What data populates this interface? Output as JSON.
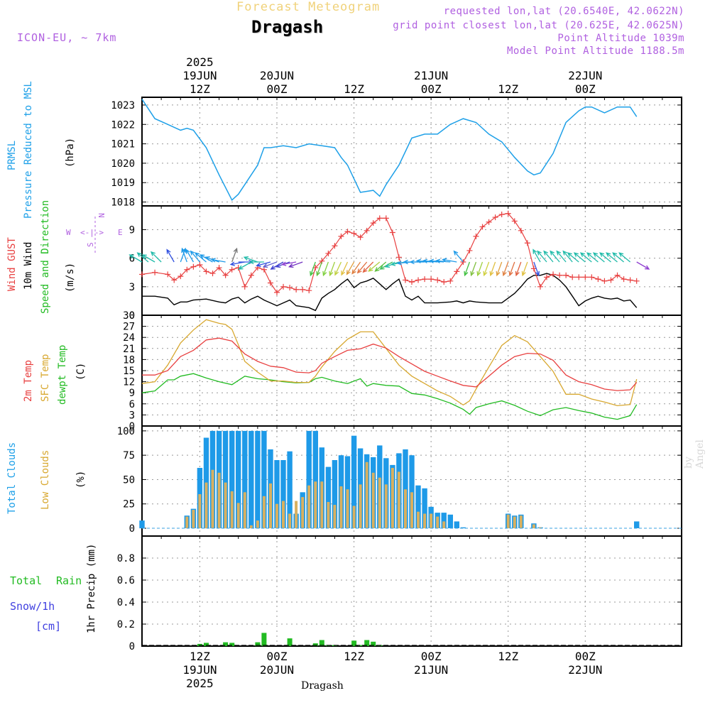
{
  "header": {
    "title": "Forecast Meteogram",
    "station": "Dragash",
    "model": "ICON-EU, ~ 7km",
    "requested": "requested lon,lat (20.6540E, 42.0622N)",
    "grid_point": "grid point closest lon,lat (20.625E, 42.0625N)",
    "point_altitude": "Point Altitude 1039m",
    "model_altitude": "Model Point Altitude 1188.5m"
  },
  "footer": {
    "station": "Dragash",
    "watermark": "by Angel"
  },
  "colors": {
    "pressure": "#1ea0e8",
    "gust": "#e84040",
    "wind": "#000000",
    "wind_dir": "#22bb22",
    "temp2m": "#e84040",
    "sfc_temp": "#d8a830",
    "dewpt": "#22bb22",
    "total_clouds": "#1e9ae8",
    "low_clouds": "#d8b060",
    "rain": "#22bb22",
    "snow": "#4040e0",
    "compass": "#b060e0"
  },
  "panel_labels": {
    "pressure": [
      "PRMSL",
      "Pressure Reduced to MSL",
      "(hPa)"
    ],
    "wind": [
      "Wind GUST",
      "10m Wind",
      "Speed and Direction",
      "(m/s)"
    ],
    "temp": [
      "2m Temp",
      "SFC Temp",
      "dewpt Temp",
      "(C)"
    ],
    "clouds": [
      "Total Clouds",
      "Low Clouds",
      "(%)"
    ],
    "precip": [
      "Total",
      "Rain",
      "Snow/1h",
      "[cm]",
      "1hr Precip (mm)"
    ]
  },
  "compass": {
    "w": "W",
    "e": "E",
    "n": "N",
    "s": "S",
    "arrows": "<-|->"
  },
  "chart_data": {
    "type": "line",
    "x_units": "hours since 2025-06-19 00Z (1-hourly)",
    "x_range": [
      3,
      87
    ],
    "top_ticks": [
      {
        "h": 12,
        "lines": [
          "2025",
          "19JUN",
          "12Z"
        ]
      },
      {
        "h": 24,
        "lines": [
          "20JUN",
          "00Z"
        ]
      },
      {
        "h": 36,
        "lines": [
          "12Z"
        ]
      },
      {
        "h": 48,
        "lines": [
          "21JUN",
          "00Z"
        ]
      },
      {
        "h": 60,
        "lines": [
          "12Z"
        ]
      },
      {
        "h": 72,
        "lines": [
          "22JUN",
          "00Z"
        ]
      }
    ],
    "bottom_ticks": [
      {
        "h": 12,
        "lines": [
          "12Z",
          "19JUN",
          "2025"
        ]
      },
      {
        "h": 24,
        "lines": [
          "00Z",
          "20JUN"
        ]
      },
      {
        "h": 36,
        "lines": [
          "12Z"
        ]
      },
      {
        "h": 48,
        "lines": [
          "00Z",
          "21JUN"
        ]
      },
      {
        "h": 60,
        "lines": [
          "12Z"
        ]
      },
      {
        "h": 72,
        "lines": [
          "00Z",
          "22JUN"
        ]
      }
    ],
    "pressure": {
      "ylim": [
        1017.8,
        1023.4
      ],
      "yticks": [
        1018,
        1019,
        1020,
        1021,
        1022,
        1023
      ],
      "x": [
        3,
        5,
        7,
        9,
        10,
        11,
        13,
        15,
        17,
        18,
        19,
        21,
        22,
        23,
        25,
        27,
        29,
        31,
        33,
        34,
        35,
        37,
        39,
        40,
        41,
        43,
        45,
        47,
        49,
        51,
        53,
        55,
        57,
        59,
        61,
        63,
        64,
        65,
        67,
        69,
        71,
        72,
        73,
        75,
        77,
        79,
        80
      ],
      "values": [
        1023.3,
        1022.3,
        1022.0,
        1021.7,
        1021.8,
        1021.7,
        1020.8,
        1019.4,
        1018.1,
        1018.4,
        1018.9,
        1019.9,
        1020.8,
        1020.8,
        1020.9,
        1020.8,
        1021.0,
        1020.9,
        1020.8,
        1020.3,
        1019.9,
        1018.5,
        1018.6,
        1018.3,
        1018.9,
        1019.9,
        1021.3,
        1021.5,
        1021.5,
        1022.0,
        1022.3,
        1022.1,
        1021.5,
        1021.1,
        1020.3,
        1019.6,
        1019.4,
        1019.5,
        1020.5,
        1022.1,
        1022.7,
        1022.9,
        1022.9,
        1022.6,
        1022.9,
        1022.9,
        1022.4
      ]
    },
    "wind": {
      "ylim": [
        0,
        11.5
      ],
      "yticks": [
        0,
        3,
        6,
        9
      ],
      "gust_x": [
        3,
        5,
        7,
        8,
        9,
        10,
        11,
        12,
        13,
        14,
        15,
        16,
        17,
        18,
        19,
        20,
        21,
        22,
        23,
        24,
        25,
        26,
        27,
        28,
        29,
        30,
        31,
        32,
        33,
        34,
        35,
        36,
        37,
        38,
        39,
        40,
        41,
        42,
        43,
        44,
        45,
        46,
        47,
        48,
        49,
        50,
        51,
        52,
        53,
        54,
        55,
        56,
        57,
        58,
        59,
        60,
        61,
        62,
        63,
        64,
        65,
        66,
        67,
        68,
        69,
        70,
        71,
        72,
        73,
        74,
        75,
        76,
        77,
        78,
        79,
        80
      ],
      "gust": [
        4.3,
        4.5,
        4.3,
        3.7,
        4.1,
        4.8,
        5.1,
        5.3,
        4.6,
        4.4,
        5.0,
        4.2,
        4.8,
        5.0,
        3.0,
        4.2,
        5.0,
        4.8,
        3.4,
        2.4,
        3.0,
        2.9,
        2.7,
        2.7,
        2.6,
        5.0,
        5.7,
        6.5,
        7.3,
        8.3,
        8.8,
        8.6,
        8.2,
        8.9,
        9.7,
        10.2,
        10.2,
        8.7,
        6.1,
        3.7,
        3.5,
        3.7,
        3.8,
        3.8,
        3.7,
        3.5,
        3.6,
        4.6,
        5.6,
        6.8,
        8.3,
        9.3,
        9.8,
        10.3,
        10.6,
        10.7,
        9.9,
        8.9,
        7.6,
        4.9,
        3.0,
        4.0,
        4.3,
        4.2,
        4.2,
        4.0,
        4.0,
        4.0,
        4.0,
        3.8,
        3.6,
        3.7,
        4.2,
        3.8,
        3.7,
        3.6
      ],
      "speed_x": [
        3,
        5,
        7,
        8,
        9,
        10,
        11,
        13,
        15,
        16,
        17,
        18,
        19,
        20,
        21,
        22,
        23,
        24,
        25,
        26,
        27,
        28,
        29,
        30,
        31,
        32,
        33,
        34,
        35,
        36,
        37,
        38,
        39,
        40,
        41,
        42,
        43,
        44,
        45,
        46,
        47,
        49,
        51,
        52,
        53,
        54,
        55,
        57,
        59,
        61,
        62,
        63,
        64,
        65,
        66,
        67,
        68,
        69,
        70,
        71,
        72,
        73,
        74,
        75,
        76,
        77,
        78,
        79,
        80
      ],
      "speed": [
        2.0,
        2.0,
        1.8,
        1.1,
        1.4,
        1.4,
        1.6,
        1.7,
        1.4,
        1.3,
        1.7,
        1.9,
        1.3,
        1.7,
        2.0,
        1.6,
        1.3,
        1.0,
        1.3,
        1.6,
        1.0,
        0.9,
        0.8,
        0.5,
        1.8,
        2.3,
        2.7,
        3.3,
        3.8,
        2.9,
        3.4,
        3.6,
        3.9,
        3.3,
        2.7,
        3.3,
        3.8,
        2.0,
        1.6,
        2.0,
        1.3,
        1.3,
        1.4,
        1.5,
        1.3,
        1.5,
        1.4,
        1.3,
        1.3,
        2.3,
        3.0,
        3.8,
        4.2,
        4.2,
        4.4,
        4.2,
        3.7,
        3.0,
        2.0,
        1.0,
        1.5,
        1.8,
        2.0,
        1.8,
        1.7,
        1.8,
        1.5,
        1.6,
        0.8
      ],
      "vectors_x": [
        3,
        4,
        5,
        6,
        8,
        9,
        10,
        11,
        12,
        13,
        14,
        15,
        16,
        17,
        18,
        19,
        20,
        21,
        22,
        23,
        24,
        25,
        26,
        27,
        28,
        30,
        31,
        32,
        33,
        34,
        35,
        36,
        37,
        38,
        39,
        40,
        41,
        42,
        43,
        44,
        45,
        46,
        47,
        48,
        49,
        50,
        51,
        52,
        53,
        54,
        55,
        56,
        57,
        58,
        59,
        60,
        61,
        62,
        63,
        64,
        65,
        66,
        67,
        68,
        69,
        70,
        71,
        72,
        73,
        74,
        75,
        76,
        77,
        78,
        79,
        80
      ],
      "vectors_dir_deg": [
        120,
        130,
        120,
        135,
        150,
        200,
        160,
        150,
        140,
        130,
        120,
        110,
        100,
        200,
        270,
        80,
        60,
        110,
        90,
        75,
        70,
        60,
        70,
        80,
        70,
        20,
        20,
        20,
        20,
        25,
        25,
        30,
        35,
        40,
        45,
        50,
        50,
        60,
        70,
        80,
        85,
        90,
        90,
        95,
        95,
        95,
        95,
        100,
        140,
        20,
        20,
        20,
        20,
        20,
        20,
        20,
        20,
        20,
        20,
        340,
        150,
        140,
        140,
        140,
        140,
        140,
        130,
        130,
        130,
        130,
        130,
        130,
        130,
        130,
        130,
        300
      ],
      "vectors_color": [
        "#22bbaa",
        "#22bbaa",
        "#22bbaa",
        "#22bbaa",
        "#3050e0",
        "#1e9ae8",
        "#1e9ae8",
        "#1e9ae8",
        "#1e9ae8",
        "#1e9ae8",
        "#1e9ae8",
        "#1e9ae8",
        "#1e9ae8",
        "#777777",
        "#3050e0",
        "#3050e0",
        "#22bbaa",
        "#22bbaa",
        "#22bbaa",
        "#3050e0",
        "#6060d0",
        "#4040d0",
        "#4040d0",
        "#9040d0",
        "#7030c0",
        "#40c040",
        "#60c040",
        "#80d040",
        "#a0d040",
        "#c0d040",
        "#e0c040",
        "#e0a040",
        "#e08040",
        "#e07040",
        "#e06040",
        "#b0d040",
        "#60c040",
        "#40c060",
        "#22bbaa",
        "#22bbaa",
        "#1e9ae8",
        "#1e9ae8",
        "#1e9ae8",
        "#1e9ae8",
        "#1e9ae8",
        "#1e9ae8",
        "#1e9ae8",
        "#1e9ae8",
        "#1e9ae8",
        "#40c040",
        "#80c040",
        "#a0d040",
        "#d0d040",
        "#e0c040",
        "#e0a040",
        "#e08040",
        "#e07040",
        "#e06040",
        "#e0c040",
        "#3050e0",
        "#22bbaa",
        "#22bbaa",
        "#22bbaa",
        "#22bbaa",
        "#22bbaa",
        "#22bbaa",
        "#22bbaa",
        "#22bbaa",
        "#22bbaa",
        "#22bbaa",
        "#22bbaa",
        "#22bbaa",
        "#22bbaa",
        "#22bbaa",
        "#22bbaa",
        "#9040d0"
      ]
    },
    "temperature": {
      "ylim": [
        0,
        30
      ],
      "yticks": [
        0,
        3,
        6,
        9,
        12,
        15,
        18,
        21,
        24,
        27,
        30
      ],
      "t2m_x": [
        3,
        5,
        7,
        9,
        11,
        13,
        15,
        17,
        19,
        21,
        23,
        25,
        27,
        29,
        30,
        31,
        33,
        35,
        37,
        39,
        41,
        43,
        45,
        47,
        49,
        51,
        53,
        55,
        57,
        59,
        61,
        63,
        65,
        67,
        69,
        71,
        73,
        75,
        77,
        79,
        80
      ],
      "t2m": [
        13.8,
        13.8,
        15.0,
        18.8,
        20.5,
        23.3,
        23.8,
        23.0,
        19.5,
        17.5,
        16.2,
        15.8,
        14.6,
        14.4,
        15.0,
        17.0,
        18.8,
        20.5,
        20.9,
        22.2,
        21.1,
        18.8,
        16.8,
        14.8,
        13.5,
        12.2,
        11.0,
        10.6,
        13.5,
        16.5,
        18.8,
        19.7,
        19.5,
        17.8,
        13.8,
        12.0,
        11.2,
        10.0,
        9.6,
        9.8,
        11.8
      ],
      "sfc_x": [
        3,
        5,
        7,
        9,
        11,
        13,
        15,
        16,
        17,
        18,
        19,
        21,
        23,
        25,
        27,
        29,
        30,
        31,
        33,
        35,
        37,
        39,
        41,
        43,
        45,
        47,
        49,
        51,
        53,
        54,
        55,
        57,
        59,
        61,
        63,
        65,
        67,
        69,
        71,
        73,
        75,
        77,
        79,
        80
      ],
      "sfc": [
        11.5,
        12.0,
        16.5,
        22.5,
        26.0,
        28.8,
        27.8,
        27.5,
        26.2,
        22.0,
        17.5,
        14.6,
        12.2,
        12.2,
        11.8,
        11.8,
        13.5,
        16.0,
        20.2,
        23.5,
        25.5,
        25.5,
        21.0,
        16.5,
        13.5,
        11.5,
        9.5,
        8.0,
        5.7,
        6.8,
        10.0,
        16.0,
        21.8,
        24.5,
        22.8,
        18.8,
        14.8,
        8.6,
        8.6,
        7.3,
        6.5,
        5.5,
        5.8,
        12.7
      ],
      "dewpt_x": [
        3,
        5,
        7,
        8,
        9,
        11,
        13,
        15,
        17,
        19,
        21,
        23,
        25,
        27,
        29,
        30,
        31,
        33,
        35,
        37,
        38,
        39,
        41,
        43,
        45,
        47,
        49,
        51,
        53,
        54,
        55,
        57,
        59,
        61,
        63,
        65,
        67,
        69,
        71,
        73,
        75,
        77,
        79,
        80
      ],
      "dewpt": [
        9.0,
        9.5,
        12.5,
        12.5,
        13.5,
        14.2,
        13.0,
        12.0,
        11.2,
        13.5,
        12.8,
        12.5,
        12.0,
        11.7,
        11.8,
        12.8,
        13.2,
        12.2,
        11.5,
        12.8,
        10.8,
        11.5,
        11.0,
        10.8,
        8.8,
        8.4,
        7.4,
        6.2,
        4.5,
        3.2,
        5.0,
        6.0,
        6.8,
        5.6,
        4.0,
        2.8,
        4.4,
        5.0,
        4.2,
        3.5,
        2.4,
        1.8,
        2.8,
        5.8
      ]
    },
    "clouds": {
      "ylim": [
        -8,
        105
      ],
      "yticks": [
        0,
        25,
        50,
        75,
        100
      ],
      "hours": [
        3,
        4,
        5,
        6,
        7,
        8,
        9,
        10,
        11,
        12,
        13,
        14,
        15,
        16,
        17,
        18,
        19,
        20,
        21,
        22,
        23,
        24,
        25,
        26,
        27,
        28,
        29,
        30,
        31,
        32,
        33,
        34,
        35,
        36,
        37,
        38,
        39,
        40,
        41,
        42,
        43,
        44,
        45,
        46,
        47,
        48,
        49,
        50,
        51,
        52,
        53,
        54,
        55,
        56,
        57,
        58,
        59,
        60,
        61,
        62,
        63,
        64,
        65,
        66,
        67,
        68,
        69,
        70,
        71,
        72,
        73,
        74,
        75,
        76,
        77,
        78,
        79,
        80
      ],
      "total": [
        8,
        0,
        0,
        0,
        0,
        0,
        0,
        13,
        20,
        62,
        93,
        100,
        100,
        100,
        100,
        100,
        100,
        100,
        100,
        100,
        81,
        70,
        70,
        79,
        15,
        37,
        100,
        100,
        83,
        63,
        70,
        75,
        74,
        95,
        82,
        76,
        73,
        85,
        72,
        65,
        77,
        81,
        75,
        44,
        41,
        22,
        16,
        16,
        14,
        7,
        1,
        0,
        0,
        0,
        0,
        0,
        0,
        15,
        13,
        14,
        0,
        5,
        1,
        0,
        0,
        0,
        0,
        0,
        0,
        0,
        0,
        0,
        0,
        0,
        0,
        0,
        0,
        7
      ],
      "low": [
        0,
        0,
        0,
        0,
        0,
        0,
        0,
        12,
        19,
        35,
        47,
        60,
        57,
        47,
        38,
        26,
        37,
        3,
        8,
        33,
        46,
        25,
        28,
        15,
        28,
        32,
        44,
        48,
        48,
        27,
        24,
        43,
        40,
        23,
        45,
        68,
        57,
        52,
        45,
        62,
        58,
        40,
        37,
        17,
        15,
        15,
        12,
        7,
        0,
        0,
        0,
        0,
        0,
        0,
        0,
        0,
        0,
        14,
        12,
        13,
        0,
        4,
        1,
        0,
        0,
        0,
        0,
        0,
        0,
        0,
        0,
        0,
        0,
        0,
        0,
        0,
        0,
        0
      ]
    },
    "precip": {
      "ylim": [
        0,
        1.0
      ],
      "yticks": [
        0,
        0.2,
        0.4,
        0.6,
        0.8
      ],
      "rain_hours": [
        12,
        13,
        16,
        17,
        21,
        22,
        26,
        30,
        31,
        32,
        33,
        36,
        37,
        38,
        39,
        40
      ],
      "rain": [
        0.02,
        0.03,
        0.035,
        0.03,
        0.035,
        0.12,
        0.07,
        0.025,
        0.055,
        0.01,
        0.01,
        0.05,
        0.01,
        0.055,
        0.04,
        0.01
      ],
      "snow": [
        0,
        0,
        0,
        0,
        0,
        0,
        0,
        0,
        0,
        0,
        0,
        0,
        0,
        0,
        0,
        0
      ]
    }
  }
}
